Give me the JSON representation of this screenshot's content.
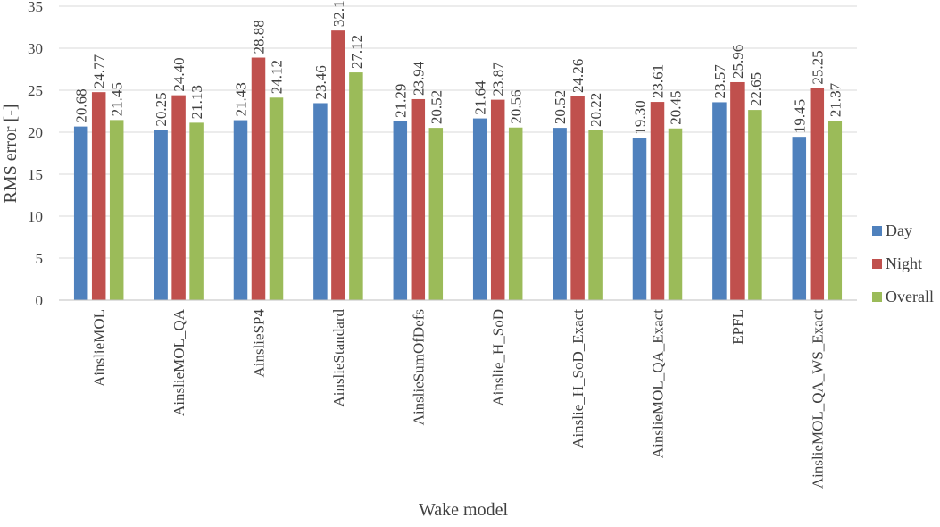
{
  "chart_data": {
    "type": "bar",
    "title": "",
    "xlabel": "Wake model",
    "ylabel": "RMS error [-]",
    "ylim": [
      0,
      35
    ],
    "yticks": [
      0,
      5,
      10,
      15,
      20,
      25,
      30,
      35
    ],
    "grid": "horizontal",
    "legend_position": "right",
    "categories": [
      "AinslieMOL",
      "AinslieMOL_QA",
      "AinslieSP4",
      "AinslieStandard",
      "AinslieSumOfDefs",
      "Ainslie_H_SoD",
      "Ainslie_H_SoD_Exact",
      "AinslieMOL_QA_Exact",
      "EPFL",
      "AinslieMOL_QA_WS_Exact"
    ],
    "series": [
      {
        "name": "Day",
        "color": "#4f81bd",
        "values": [
          20.68,
          20.25,
          21.43,
          23.46,
          21.29,
          21.64,
          20.52,
          19.3,
          23.57,
          19.45
        ],
        "labels": [
          "20.68",
          "20.25",
          "21.43",
          "23.46",
          "21.29",
          "21.64",
          "20.52",
          "19.30",
          "23.57",
          "19.45"
        ]
      },
      {
        "name": "Night",
        "color": "#c0504d",
        "values": [
          24.77,
          24.4,
          28.88,
          32.11,
          23.94,
          23.87,
          24.26,
          23.61,
          25.96,
          25.25
        ],
        "labels": [
          "24.77",
          "24.40",
          "28.88",
          "32.11",
          "23.94",
          "23.87",
          "24.26",
          "23.61",
          "25.96",
          "25.25"
        ]
      },
      {
        "name": "Overall",
        "color": "#9bbb59",
        "values": [
          21.45,
          21.13,
          24.12,
          27.12,
          20.52,
          20.56,
          20.22,
          20.45,
          22.65,
          21.37
        ],
        "labels": [
          "21.45",
          "21.13",
          "24.12",
          "27.12",
          "20.52",
          "20.56",
          "20.22",
          "20.45",
          "22.65",
          "21.37"
        ]
      }
    ]
  }
}
